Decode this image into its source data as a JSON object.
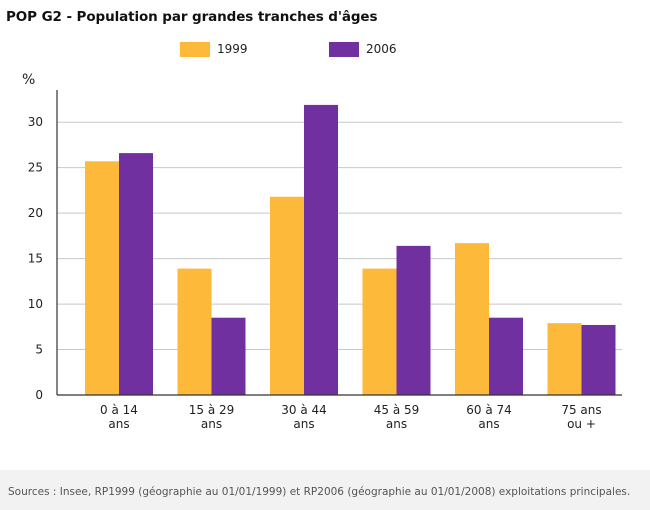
{
  "chart_data": {
    "type": "bar",
    "title": "POP G2 - Population par grandes tranches d'âges",
    "ylabel": "%",
    "xlabel": "",
    "ylim": [
      0,
      34
    ],
    "yticks": [
      0,
      5,
      10,
      15,
      20,
      25,
      30
    ],
    "grid": true,
    "legend_position": "top",
    "categories": [
      [
        "0 à 14",
        "ans"
      ],
      [
        "15 à 29",
        "ans"
      ],
      [
        "30 à 44",
        "ans"
      ],
      [
        "45 à 59",
        "ans"
      ],
      [
        "60 à 74",
        "ans"
      ],
      [
        "75 ans",
        "ou +"
      ]
    ],
    "series": [
      {
        "name": "1999",
        "color": "#FDB93A",
        "values": [
          25.7,
          13.9,
          21.8,
          13.9,
          16.7,
          7.9
        ]
      },
      {
        "name": "2006",
        "color": "#7030A0",
        "values": [
          26.6,
          8.5,
          31.9,
          16.4,
          8.5,
          7.7
        ]
      }
    ]
  },
  "footer": {
    "sources": "Sources : Insee, RP1999 (géographie au 01/01/1999) et RP2006 (géographie au 01/01/2008) exploitations principales."
  }
}
